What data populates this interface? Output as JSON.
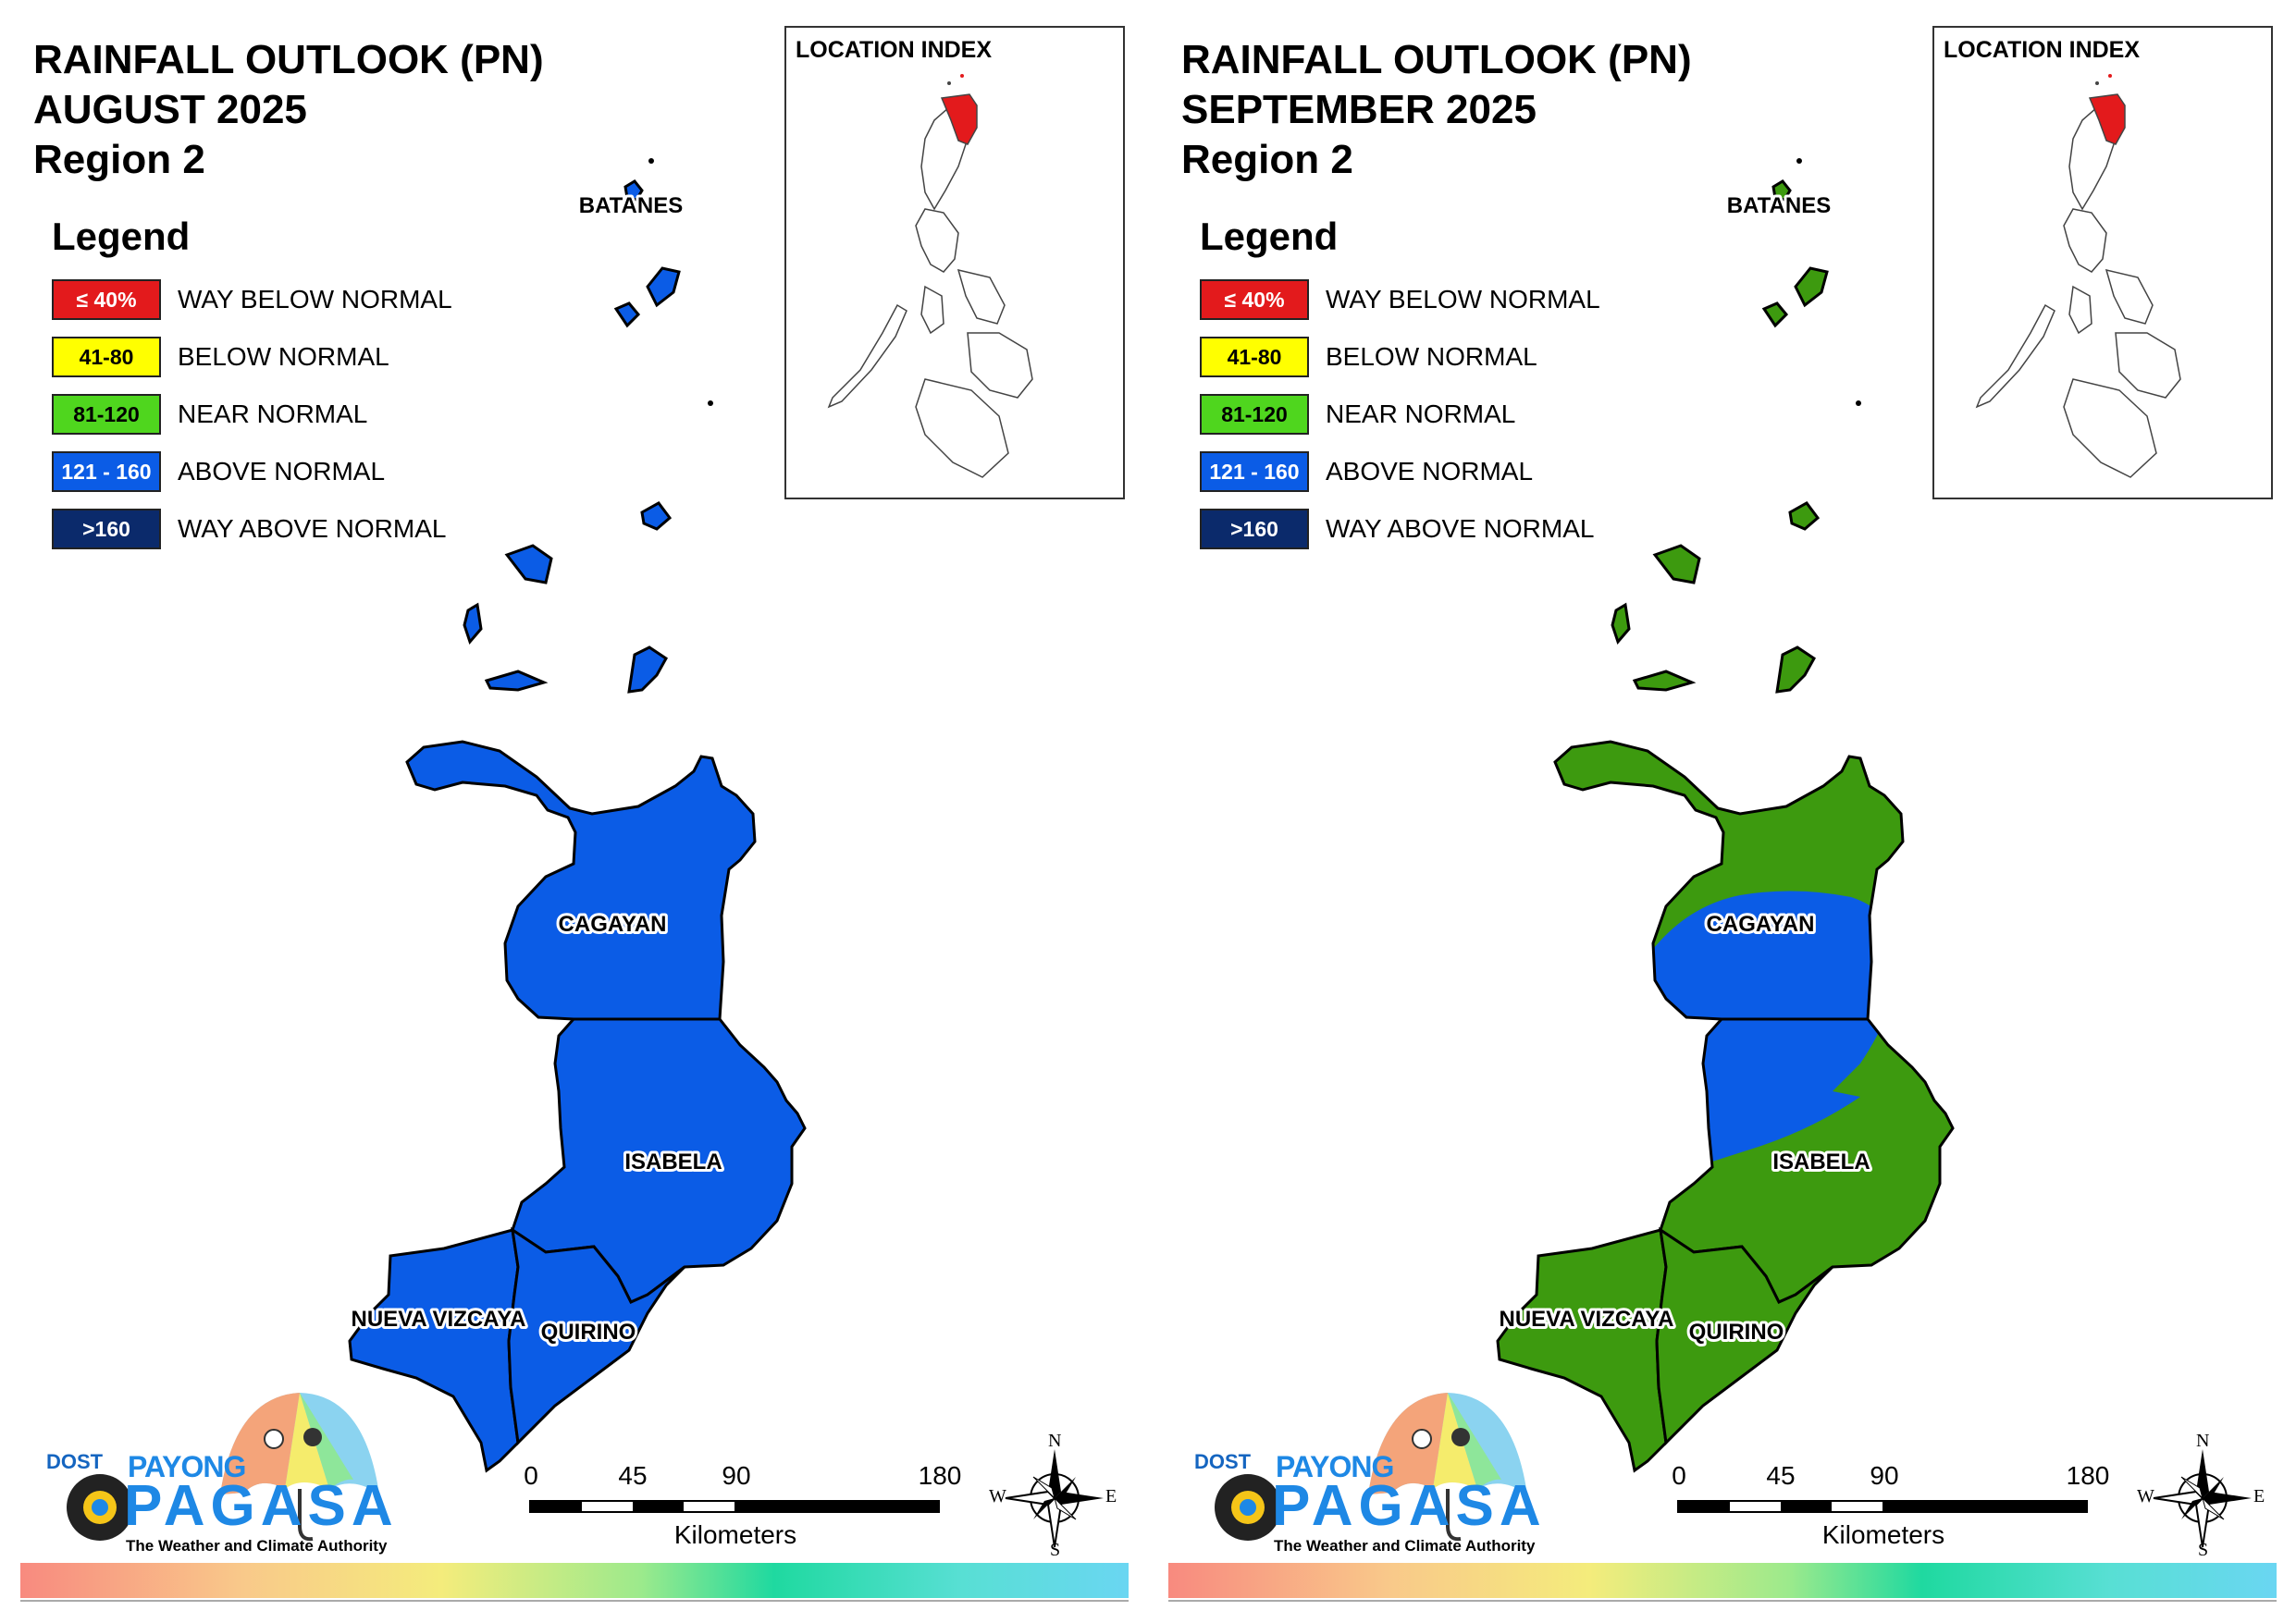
{
  "colors": {
    "way_below": "#e31a1c",
    "below": "#ffff00",
    "near": "#3d9a0f",
    "near_legend": "#4fd61e",
    "above": "#0b5ce6",
    "way_above": "#0b2a6b"
  },
  "legend": {
    "title": "Legend",
    "items": [
      {
        "range": "≤ 40%",
        "label": "WAY BELOW NORMAL",
        "color": "#e31a1c",
        "text_color": "#ffffff"
      },
      {
        "range": "41-80",
        "label": "BELOW NORMAL",
        "color": "#ffff00",
        "text_color": "#000000"
      },
      {
        "range": "81-120",
        "label": "NEAR NORMAL",
        "color": "#4fd61e",
        "text_color": "#000000"
      },
      {
        "range": "121 - 160",
        "label": "ABOVE NORMAL",
        "color": "#0b5ce6",
        "text_color": "#ffffff"
      },
      {
        "range": ">160",
        "label": "WAY ABOVE NORMAL",
        "color": "#0b2a6b",
        "text_color": "#ffffff"
      }
    ]
  },
  "inset": {
    "title": "LOCATION INDEX",
    "highlight_color": "#e31a1c"
  },
  "scale": {
    "ticks": [
      "0",
      "45",
      "90",
      "180"
    ],
    "unit": "Kilometers"
  },
  "compass": {
    "n": "N",
    "s": "S",
    "e": "E",
    "w": "W"
  },
  "logo": {
    "dost": "DOST",
    "payong": "PAYONG",
    "pagasa": "PAGASA",
    "tagline": "The Weather and Climate Authority"
  },
  "panels": [
    {
      "title_line1": "RAINFALL OUTLOOK (PN)",
      "title_line2": "AUGUST 2025",
      "title_line3": "Region 2",
      "provinces": {
        "batanes": {
          "name": "BATANES",
          "category": "ABOVE NORMAL"
        },
        "cagayan": {
          "name": "CAGAYAN",
          "category": "ABOVE NORMAL"
        },
        "isabela": {
          "name": "ISABELA",
          "category": "ABOVE NORMAL"
        },
        "nueva_vizcaya": {
          "name": "NUEVA VIZCAYA",
          "category": "ABOVE NORMAL"
        },
        "quirino": {
          "name": "QUIRINO",
          "category": "ABOVE NORMAL"
        }
      }
    },
    {
      "title_line1": "RAINFALL OUTLOOK (PN)",
      "title_line2": "SEPTEMBER 2025",
      "title_line3": "Region 2",
      "provinces": {
        "batanes": {
          "name": "BATANES",
          "category": "NEAR NORMAL"
        },
        "cagayan": {
          "name": "CAGAYAN",
          "category": "NEAR NORMAL with ABOVE NORMAL in south"
        },
        "isabela": {
          "name": "ISABELA",
          "category": "NEAR NORMAL with ABOVE NORMAL in north"
        },
        "nueva_vizcaya": {
          "name": "NUEVA VIZCAYA",
          "category": "NEAR NORMAL"
        },
        "quirino": {
          "name": "QUIRINO",
          "category": "NEAR NORMAL"
        }
      }
    }
  ]
}
